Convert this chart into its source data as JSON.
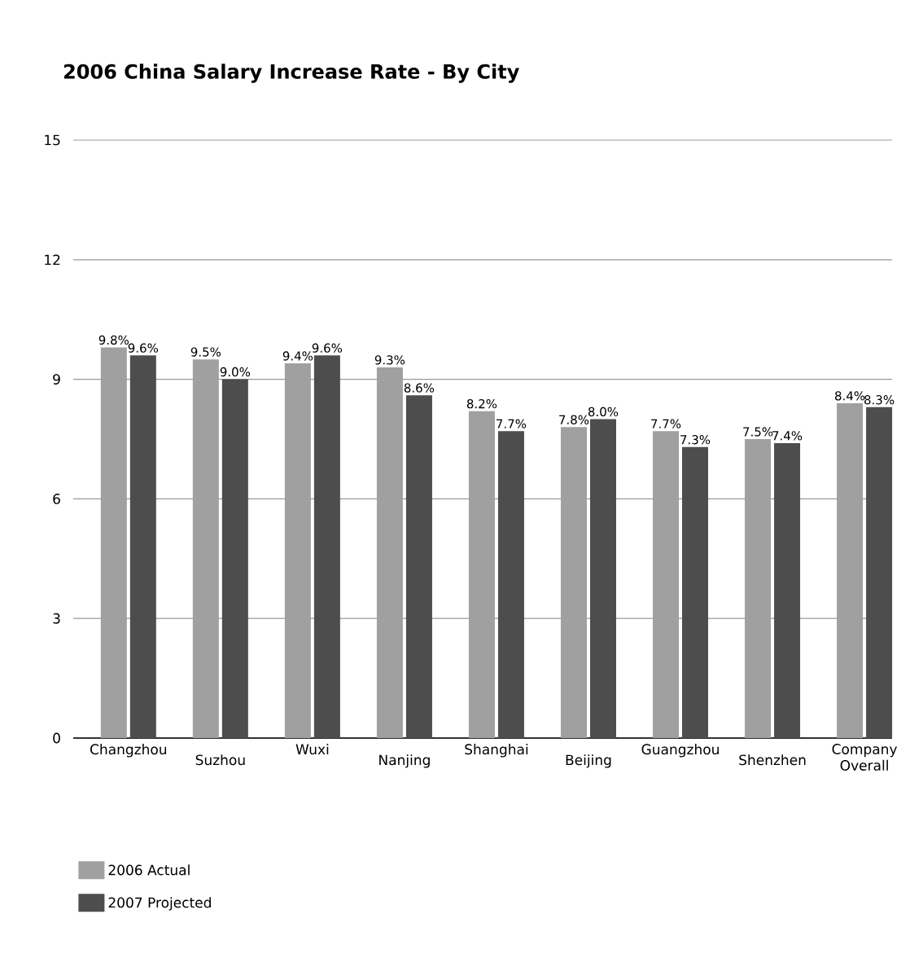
{
  "chart_data": {
    "type": "bar",
    "title": "2006 China Salary Increase Rate - By City",
    "categories": [
      "Changzhou",
      "Suzhou",
      "Wuxi",
      "Nanjing",
      "Shanghai",
      "Beijing",
      "Guangzhou",
      "Shenzhen",
      "Company Overall"
    ],
    "series": [
      {
        "name": "2006 Actual",
        "color": "#a0a0a0",
        "values": [
          9.8,
          9.5,
          9.4,
          9.3,
          8.2,
          7.8,
          7.7,
          7.5,
          8.4
        ],
        "value_labels": [
          "9.8%",
          "9.5%",
          "9.4%",
          "9.3%",
          "8.2%",
          "7.8%",
          "7.7%",
          "7.5%",
          "8.4%"
        ]
      },
      {
        "name": "2007 Projected",
        "color": "#4d4d4d",
        "values": [
          9.6,
          9.0,
          9.6,
          8.6,
          7.7,
          8.0,
          7.3,
          7.4,
          8.3
        ],
        "value_labels": [
          "9.6%",
          "9.0%",
          "9.6%",
          "8.6%",
          "7.7%",
          "8.0%",
          "7.3%",
          "7.4%",
          "8.3%"
        ]
      }
    ],
    "ylim": [
      0,
      15
    ],
    "yticks": [
      0,
      3,
      6,
      9,
      12,
      15
    ],
    "grid": "y",
    "legend": "bottom left"
  }
}
